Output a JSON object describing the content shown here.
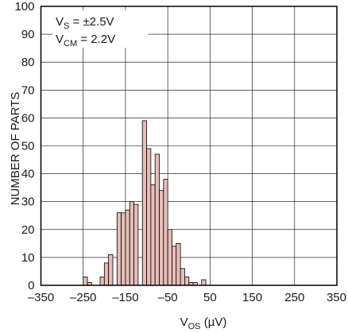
{
  "chart_data": {
    "type": "bar",
    "subtype": "histogram",
    "bin_width": 10,
    "x": [
      -245,
      -235,
      -225,
      -215,
      -205,
      -195,
      -185,
      -175,
      -165,
      -155,
      -145,
      -135,
      -125,
      -115,
      -105,
      -95,
      -85,
      -75,
      -65,
      -55,
      -45,
      -35,
      -25,
      -15,
      -5,
      5,
      15,
      25,
      35,
      45,
      55,
      65,
      75,
      85,
      95,
      105,
      115,
      125,
      135,
      145,
      155,
      165
    ],
    "values": [
      3,
      1,
      0,
      0,
      3,
      8,
      11,
      0,
      26,
      26,
      27,
      30,
      29,
      0,
      59,
      49,
      36,
      47,
      34,
      38,
      20,
      14,
      15,
      6,
      3,
      1,
      1,
      0,
      2,
      0,
      0,
      0,
      0,
      0,
      0,
      0,
      0,
      0,
      0,
      0,
      0,
      0
    ],
    "xlabel_main": "V",
    "xlabel_sub": "OS",
    "xlabel_unit": " (µV)",
    "ylabel": "NUMBER OF PARTS",
    "xlim": [
      -350,
      350
    ],
    "ylim": [
      0,
      100
    ],
    "xticks": [
      -350,
      -250,
      -150,
      -50,
      50,
      150,
      250,
      350
    ],
    "xtick_labels": [
      "–350",
      "–250",
      "–150",
      "–50",
      "50",
      "150",
      "250",
      "350"
    ],
    "yticks": [
      0,
      10,
      20,
      30,
      40,
      50,
      60,
      70,
      80,
      90,
      100
    ],
    "grid": true,
    "bar_fill": "#e6bdb7",
    "bar_stroke": "#000000",
    "grid_color": "#000000"
  },
  "legend": {
    "line1_main": "V",
    "line1_sub": "S",
    "line1_rest": " = ±2.5V",
    "line2_main": "V",
    "line2_sub": "CM",
    "line2_rest": " = 2.2V"
  }
}
